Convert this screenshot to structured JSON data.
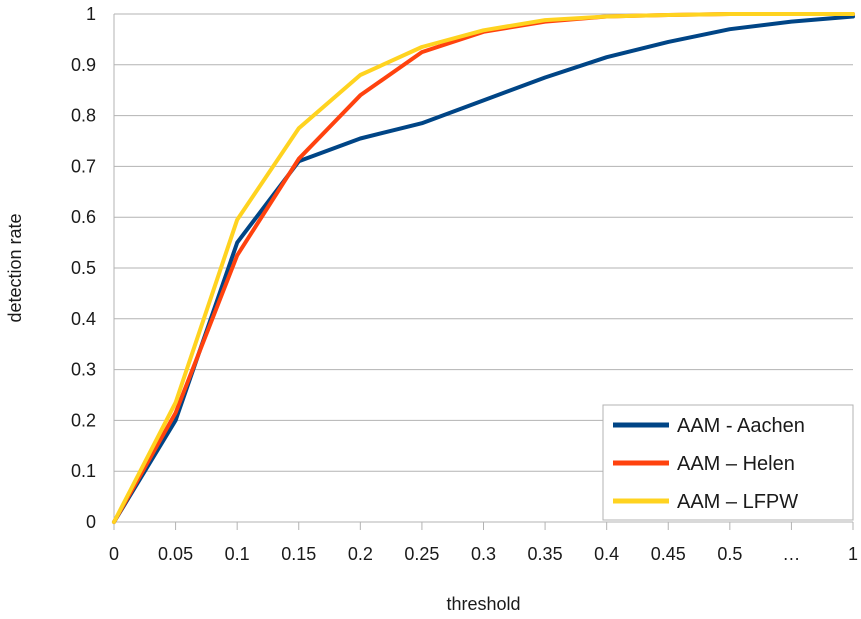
{
  "chart_data": {
    "type": "line",
    "xlabel": "threshold",
    "ylabel": "detection rate",
    "categories": [
      "0",
      "0.05",
      "0.1",
      "0.15",
      "0.2",
      "0.25",
      "0.3",
      "0.35",
      "0.4",
      "0.45",
      "0.5",
      "…",
      "1"
    ],
    "ylim": [
      0,
      1
    ],
    "yticks": [
      "0",
      "0.1",
      "0.2",
      "0.3",
      "0.4",
      "0.5",
      "0.6",
      "0.7",
      "0.8",
      "0.9",
      "1"
    ],
    "grid": "horizontal",
    "legend_position": "bottom-right",
    "series": [
      {
        "name": "AAM - Aachen",
        "color": "#004586",
        "values": [
          0,
          0.2,
          0.55,
          0.71,
          0.755,
          0.785,
          0.83,
          0.875,
          0.915,
          0.945,
          0.97,
          0.985,
          0.995
        ]
      },
      {
        "name": "AAM – Helen",
        "color": "#ff420e",
        "values": [
          0,
          0.215,
          0.525,
          0.715,
          0.84,
          0.925,
          0.965,
          0.985,
          0.995,
          0.998,
          1,
          1,
          1
        ]
      },
      {
        "name": "AAM – LFPW",
        "color": "#ffd320",
        "values": [
          0,
          0.235,
          0.595,
          0.775,
          0.88,
          0.935,
          0.968,
          0.988,
          0.995,
          0.998,
          1,
          1,
          1
        ]
      }
    ]
  }
}
